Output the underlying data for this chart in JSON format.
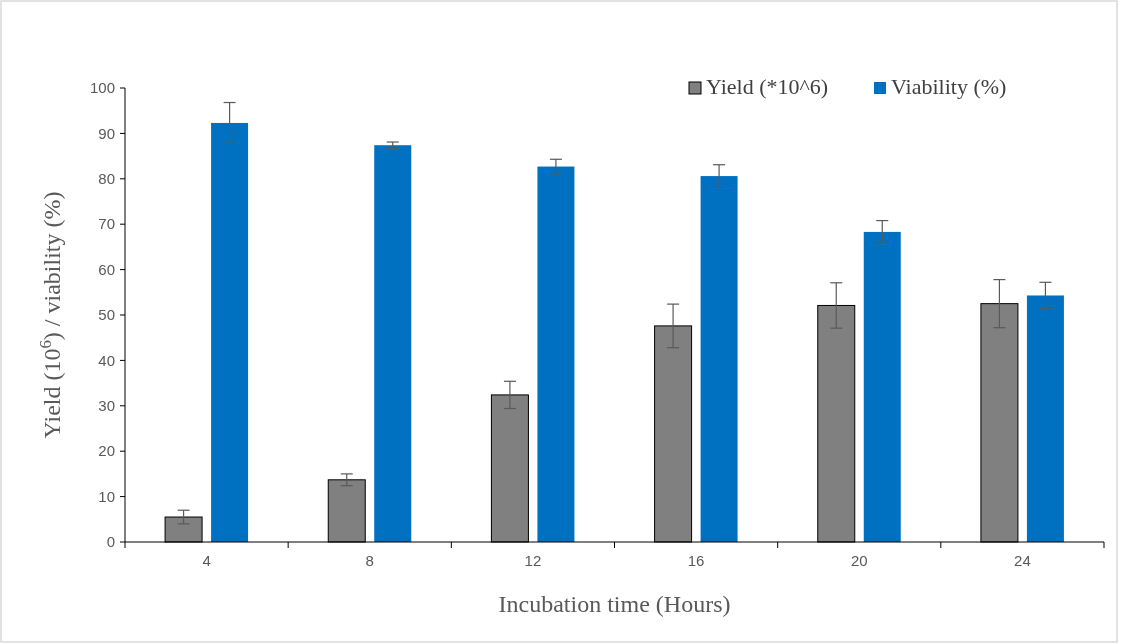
{
  "chart_data": {
    "type": "bar",
    "xlabel": "Incubation time (Hours)",
    "ylabel": "Yield (10$^{6}$) / viability (%)",
    "categories": [
      "4",
      "8",
      "12",
      "16",
      "20",
      "24"
    ],
    "series": [
      {
        "name": "Yield (*10^6)",
        "color": "#808080",
        "values": [
          5.5,
          13.7,
          32.4,
          47.6,
          52.1,
          52.5
        ],
        "errors": [
          1.5,
          1.3,
          3,
          4.8,
          5,
          5.3
        ]
      },
      {
        "name": "Viability (%)",
        "color": "#0070c0",
        "values": [
          92.3,
          87.4,
          82.7,
          80.6,
          68.3,
          54.3
        ],
        "errors": [
          4.5,
          0.7,
          1.6,
          2.5,
          2.5,
          2.9
        ]
      }
    ],
    "ylim": [
      0,
      100
    ],
    "yticks": [
      0,
      10,
      20,
      30,
      40,
      50,
      60,
      70,
      80,
      90,
      100
    ],
    "grid": false,
    "legend": "top right"
  }
}
